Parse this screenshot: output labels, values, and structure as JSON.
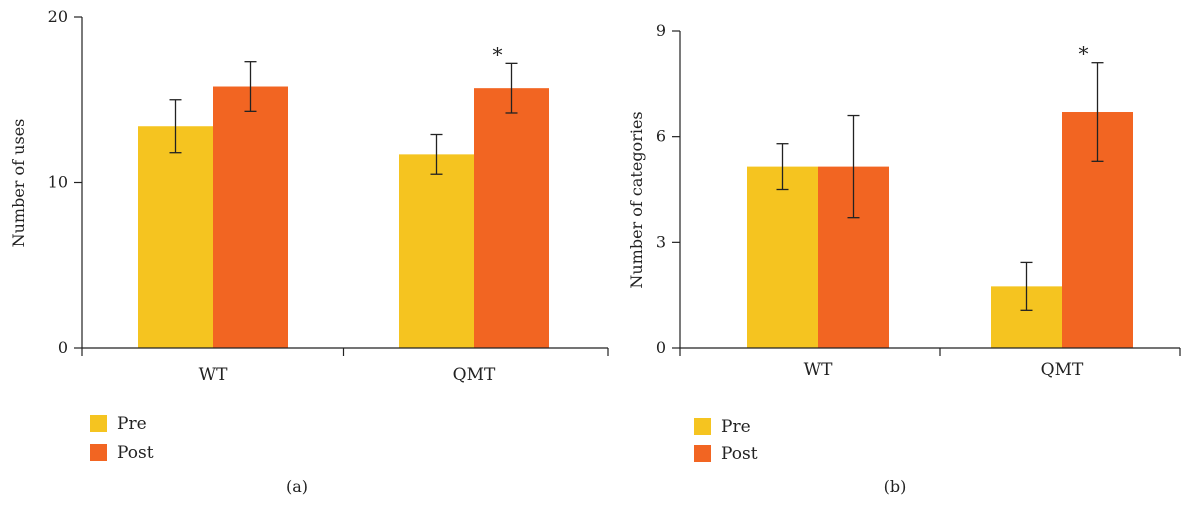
{
  "colors": {
    "pre": "#F5C420",
    "post": "#F26522",
    "axis": "#222222"
  },
  "chart_data": [
    {
      "type": "bar",
      "panel_label": "(a)",
      "ylabel": "Number of uses",
      "ylim": [
        0,
        20
      ],
      "yticks": [
        "0",
        "10",
        "20"
      ],
      "categories": [
        "WT",
        "QMT"
      ],
      "series": [
        {
          "name": "Pre",
          "values": [
            13.4,
            11.7
          ],
          "errors": [
            1.6,
            1.2
          ]
        },
        {
          "name": "Post",
          "values": [
            15.8,
            15.7
          ],
          "errors": [
            1.5,
            1.5
          ]
        }
      ],
      "significance": [
        {
          "category": "QMT",
          "series": "Post",
          "label": "*"
        }
      ],
      "legend": [
        "Pre",
        "Post"
      ],
      "legend_position": "bottom-left"
    },
    {
      "type": "bar",
      "panel_label": "(b)",
      "ylabel": "Number of categories",
      "ylim": [
        0,
        9
      ],
      "yticks": [
        "0",
        "3",
        "6",
        "9"
      ],
      "categories": [
        "WT",
        "QMT"
      ],
      "series": [
        {
          "name": "Pre",
          "values": [
            5.15,
            1.75
          ],
          "errors": [
            0.65,
            0.68
          ]
        },
        {
          "name": "Post",
          "values": [
            5.15,
            6.7
          ],
          "errors": [
            1.45,
            1.4
          ]
        }
      ],
      "significance": [
        {
          "category": "QMT",
          "series": "Post",
          "label": "*"
        }
      ],
      "legend": [
        "Pre",
        "Post"
      ],
      "legend_position": "bottom-left"
    }
  ]
}
